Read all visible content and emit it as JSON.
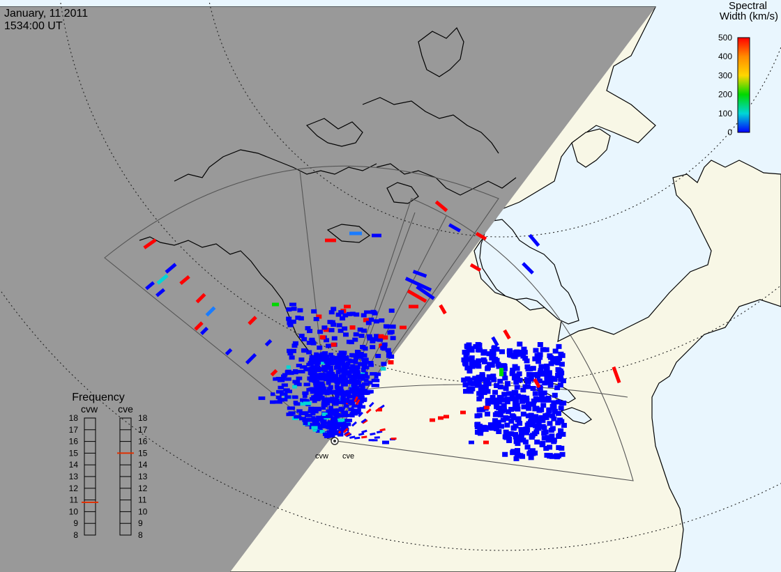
{
  "header": {
    "date": "January, 11 2011",
    "time": "1534:00 UT"
  },
  "colorbar": {
    "title_line1": "Spectral",
    "title_line2": "Width (km/s)",
    "ticks": [
      "500",
      "400",
      "300",
      "200",
      "100",
      "0"
    ],
    "colors": [
      "#ff0000",
      "#ff8c00",
      "#ffd700",
      "#00d800",
      "#00d6d6",
      "#0000ff"
    ]
  },
  "radars": {
    "west_label": "cvw",
    "east_label": "cve"
  },
  "frequency_panel": {
    "title": "Frequency",
    "col_west": "cvw",
    "col_east": "cve",
    "scale_mhz": [
      "18",
      "17",
      "16",
      "15",
      "14",
      "13",
      "12",
      "11",
      "10",
      "9",
      "8"
    ],
    "cvw_mhz": 10.8,
    "cve_mhz": 15.0,
    "marker_color": "#e03000"
  },
  "map_colors": {
    "ocean": "#e9f6fe",
    "land": "#f8f7e6",
    "night": "#999999",
    "coast": "#000000",
    "fov": "#555555"
  }
}
